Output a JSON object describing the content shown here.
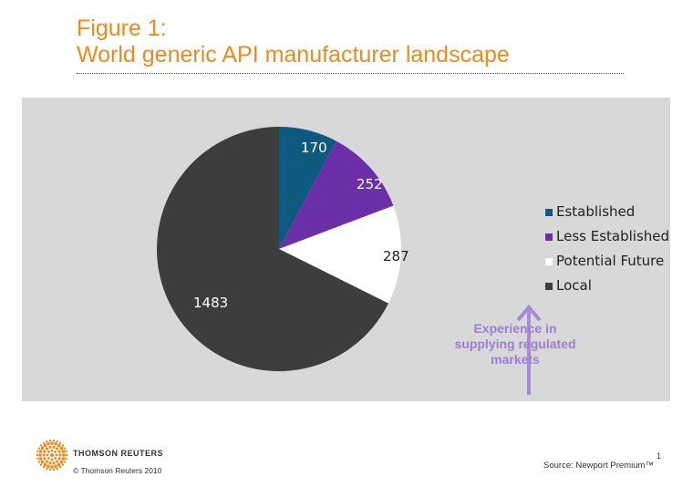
{
  "title": {
    "line1": "Figure 1:",
    "line2": "World generic API manufacturer landscape"
  },
  "colors": {
    "title": "#f08a1c",
    "panel_bg": "#d8d8d8",
    "arrow": "#a68bd9",
    "experience_text": "#9b7fd0"
  },
  "chart_data": {
    "type": "pie",
    "title": "World generic API manufacturer landscape",
    "categories": [
      "Established",
      "Less Established",
      "Potential Future",
      "Local"
    ],
    "values": [
      170,
      252,
      287,
      1483
    ],
    "colors": [
      "#0e5a7f",
      "#6b2fa8",
      "#ffffff",
      "#3d3d3d"
    ],
    "label_colors": [
      "#ffffff",
      "#ffffff",
      "#222222",
      "#ffffff"
    ],
    "start_angle_deg": 0,
    "direction": "clockwise",
    "legend_position": "right"
  },
  "legend": {
    "items": [
      {
        "label": "Established",
        "color": "#0e5a7f"
      },
      {
        "label": "Less Established",
        "color": "#6b2fa8"
      },
      {
        "label": "Potential Future",
        "color": "#ffffff"
      },
      {
        "label": "Local",
        "color": "#3d3d3d"
      }
    ]
  },
  "annotation": {
    "line1": "Experience in",
    "line2": "supplying regulated",
    "line3": "markets"
  },
  "footer": {
    "brand": "THOMSON REUTERS",
    "copyright": "© Thomson Reuters 2010",
    "page_number": "1",
    "source": "Source: Newport Premium™"
  }
}
